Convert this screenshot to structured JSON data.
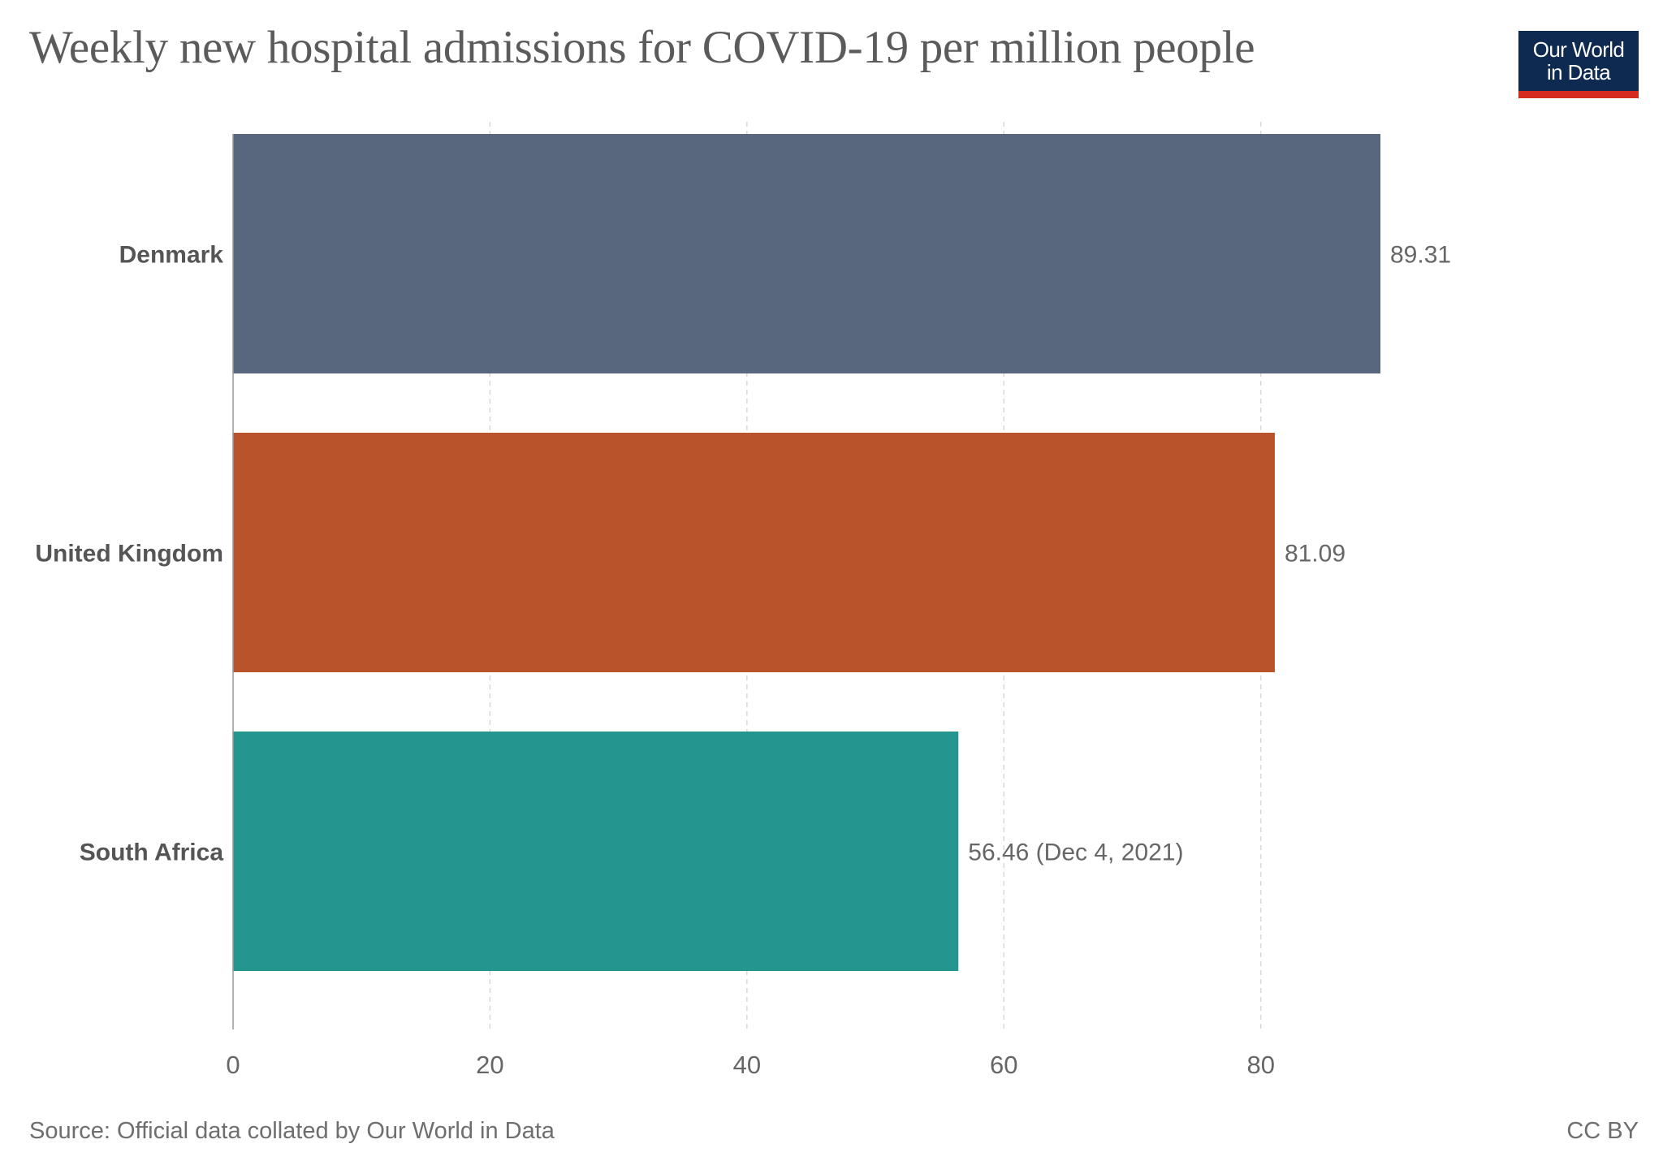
{
  "header": {
    "title": "Weekly new hospital admissions for COVID-19 per million people",
    "logo_line1": "Our World",
    "logo_line2": "in Data"
  },
  "footer": {
    "source": "Source: Official data collated by Our World in Data",
    "license": "CC BY"
  },
  "colors": {
    "denmark": "#58677e",
    "united_kingdom": "#b9532c",
    "south_africa": "#24968f",
    "logo_bg": "#0e2a50",
    "logo_bar": "#d42b21"
  },
  "chart_data": {
    "type": "bar",
    "orientation": "horizontal",
    "title": "Weekly new hospital admissions for COVID-19 per million people",
    "categories": [
      "Denmark",
      "United Kingdom",
      "South Africa"
    ],
    "values": [
      89.31,
      81.09,
      56.46
    ],
    "value_labels": [
      "89.31",
      "81.09",
      "56.46 (Dec 4, 2021)"
    ],
    "bar_colors": [
      "#58677e",
      "#b9532c",
      "#24968f"
    ],
    "xlim": [
      0,
      89.31
    ],
    "xticks": [
      0,
      20,
      40,
      60,
      80
    ],
    "xlabel": "",
    "ylabel": "",
    "grid": "vertical dashed",
    "legend": "none"
  }
}
